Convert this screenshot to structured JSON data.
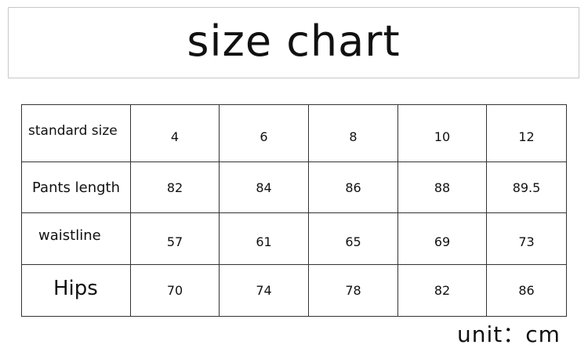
{
  "title": "size chart",
  "table": {
    "rows": [
      {
        "label": "standard size",
        "values": [
          "4",
          "6",
          "8",
          "10",
          "12"
        ]
      },
      {
        "label": "Pants length",
        "values": [
          "82",
          "84",
          "86",
          "88",
          "89.5"
        ]
      },
      {
        "label": "waistline",
        "values": [
          "57",
          "61",
          "65",
          "69",
          "73"
        ]
      },
      {
        "label": "Hips",
        "values": [
          "70",
          "74",
          "78",
          "82",
          "86"
        ]
      }
    ]
  },
  "unit": "unit：cm"
}
